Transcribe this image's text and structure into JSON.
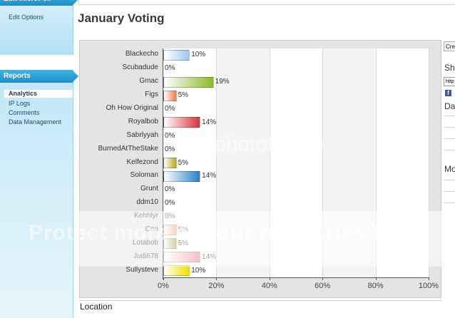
{
  "sidebar": {
    "top_tab": "Edit MicroPoll",
    "edit_options": "Edit Options",
    "reports_tab": "Reports",
    "items": [
      {
        "label": "Analytics",
        "active": true
      },
      {
        "label": "IP Logs",
        "active": false
      },
      {
        "label": "Comments",
        "active": false
      },
      {
        "label": "Data Management",
        "active": false
      }
    ]
  },
  "page": {
    "title": "January Voting",
    "location_heading": "Location"
  },
  "right_column": {
    "button_label": "Cre",
    "heading_share": "Sh",
    "input_value": "http",
    "heading_data": "Da",
    "heading_more": "Mo",
    "facebook_icon": "f"
  },
  "watermark": {
    "text_1": "Protect more of your memories for",
    "text_2": "photobucke"
  },
  "chart_data": {
    "type": "bar",
    "orientation": "horizontal",
    "categories": [
      "Blackecho",
      "Scubadude",
      "Gmac",
      "Figs",
      "Oh How Original",
      "Royalbob",
      "Sabrlyyah",
      "BurnedAtTheStake",
      "Kelfezond",
      "Soloman",
      "Grunt",
      "ddm10",
      "Kehhlyr",
      "Con",
      "Lotabob",
      "Judi678",
      "Sullysteve"
    ],
    "values": [
      10,
      0,
      19,
      5,
      0,
      14,
      0,
      0,
      5,
      14,
      0,
      0,
      0,
      5,
      5,
      14,
      10
    ],
    "value_labels": [
      "10%",
      "0%",
      "19%",
      "5%",
      "0%",
      "14%",
      "0%",
      "0%",
      "5%",
      "14%",
      "0%",
      "0%",
      "0%",
      "5%",
      "5%",
      "14%",
      "10%"
    ],
    "bar_colors": [
      "#9ec8ee",
      "#cccccc",
      "#8cb92a",
      "#f07a4a",
      "#cccccc",
      "#d8343c",
      "#cccccc",
      "#cccccc",
      "#b8a81a",
      "#2580c8",
      "#cccccc",
      "#cccccc",
      "#cccccc",
      "#f0a070",
      "#a09030",
      "#e87888",
      "#f0e000"
    ],
    "x_ticks": [
      "0%",
      "20%",
      "40%",
      "60%",
      "80%",
      "100%"
    ],
    "xlim": [
      0,
      100
    ],
    "grid": true,
    "legend": "none"
  }
}
